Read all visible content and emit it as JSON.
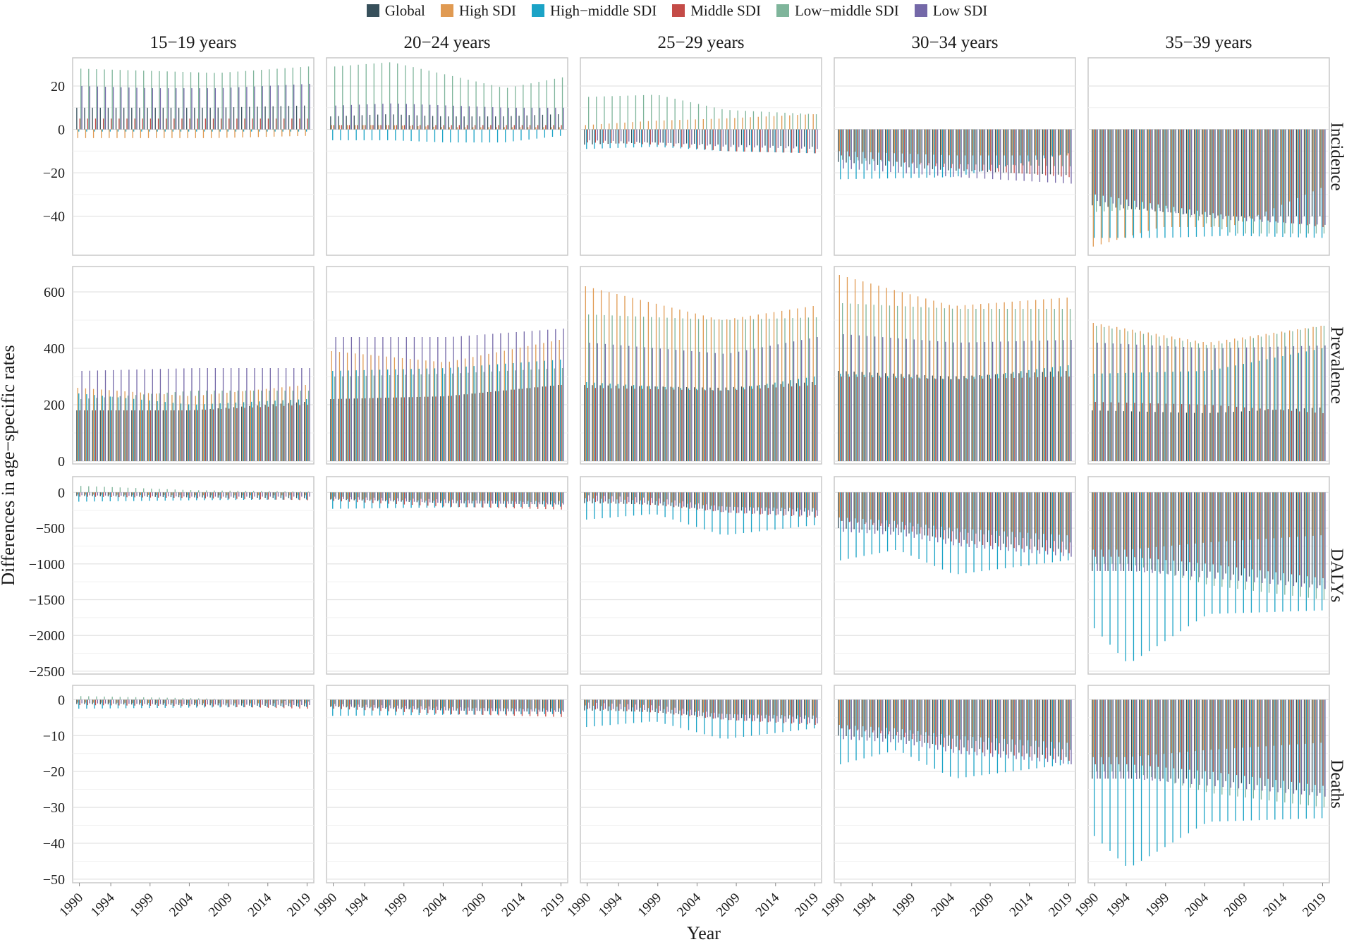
{
  "chart_data": {
    "type": "bar",
    "title": "",
    "xlabel": "Year",
    "ylabel": "Differences in age−specific rates",
    "legend": [
      {
        "name": "Global",
        "color": "#37505b"
      },
      {
        "name": "High SDI",
        "color": "#e09a52"
      },
      {
        "name": "High−middle SDI",
        "color": "#1ba3c6"
      },
      {
        "name": "Middle SDI",
        "color": "#c44b47"
      },
      {
        "name": "Low−middle SDI",
        "color": "#7fb59b"
      },
      {
        "name": "Low SDI",
        "color": "#7468a8"
      }
    ],
    "years": [
      1990,
      2019
    ],
    "x_ticks": [
      "1990",
      "1994",
      "1999",
      "2004",
      "2009",
      "2014",
      "2019"
    ],
    "age_groups": [
      "15−19 years",
      "20−24 years",
      "25−29 years",
      "30−34 years",
      "35−39 years"
    ],
    "rows": [
      {
        "measure": "Incidence",
        "ylim": [
          -58,
          33
        ],
        "ticks": [
          -40,
          -20,
          0,
          20
        ],
        "tick_labels": [
          "−40",
          "−20",
          "0",
          "20"
        ],
        "panels": [
          {
            "anchors": [
              [
                0,
                10,
                -4,
                -1,
                5,
                28,
                20
              ],
              [
                0.3,
                10,
                -4,
                -1,
                5,
                27,
                19
              ],
              [
                0.6,
                10,
                -4,
                -1,
                5,
                26,
                19
              ],
              [
                1,
                11,
                -3,
                -1,
                5,
                29,
                21
              ]
            ]
          },
          {
            "anchors": [
              [
                0,
                6,
                2,
                -5,
                2,
                29,
                11
              ],
              [
                0.25,
                7,
                2,
                -5,
                2,
                31,
                12
              ],
              [
                0.5,
                6,
                1,
                -6,
                2,
                25,
                11
              ],
              [
                0.75,
                6,
                1,
                -6,
                2,
                19,
                10
              ],
              [
                1,
                7,
                1,
                -3,
                2,
                24,
                10
              ]
            ]
          },
          {
            "anchors": [
              [
                0,
                -7,
                2,
                -9,
                -6,
                15,
                -5
              ],
              [
                0.3,
                -6,
                4,
                -8,
                -7,
                16,
                -6
              ],
              [
                0.6,
                -7,
                5,
                -10,
                -10,
                9,
                -8
              ],
              [
                1,
                -8,
                7,
                -11,
                -11,
                7,
                -9
              ]
            ]
          },
          {
            "anchors": [
              [
                0,
                -15,
                -10,
                -23,
                -12,
                -14,
                -18
              ],
              [
                0.5,
                -19,
                -12,
                -22,
                -18,
                -16,
                -22
              ],
              [
                1,
                -21,
                -12,
                -11,
                -22,
                -17,
                -25
              ]
            ]
          },
          {
            "anchors": [
              [
                0,
                -35,
                -54,
                -50,
                -30,
                -38,
                -33
              ],
              [
                0.3,
                -38,
                -45,
                -50,
                -35,
                -36,
                -38
              ],
              [
                0.6,
                -40,
                -45,
                -49,
                -40,
                -48,
                -42
              ],
              [
                1,
                -40,
                -27,
                -50,
                -45,
                -48,
                -44
              ]
            ]
          }
        ]
      },
      {
        "measure": "Prevalence",
        "ylim": [
          -10,
          690
        ],
        "ticks": [
          0,
          200,
          400,
          600
        ],
        "tick_labels": [
          "0",
          "200",
          "400",
          "600"
        ],
        "panels": [
          {
            "anchors": [
              [
                0,
                180,
                260,
                240,
                180,
                220,
                320
              ],
              [
                0.5,
                180,
                230,
                200,
                180,
                250,
                330
              ],
              [
                1,
                210,
                270,
                220,
                200,
                250,
                330
              ]
            ]
          },
          {
            "anchors": [
              [
                0,
                220,
                390,
                320,
                220,
                300,
                440
              ],
              [
                0.5,
                230,
                350,
                330,
                230,
                310,
                440
              ],
              [
                1,
                270,
                430,
                360,
                270,
                330,
                470
              ]
            ]
          },
          {
            "anchors": [
              [
                0,
                270,
                620,
                280,
                260,
                520,
                420
              ],
              [
                0.6,
                260,
                500,
                250,
                250,
                500,
                380
              ],
              [
                1,
                280,
                550,
                300,
                270,
                510,
                440
              ]
            ]
          },
          {
            "anchors": [
              [
                0,
                320,
                660,
                310,
                300,
                560,
                450
              ],
              [
                0.5,
                300,
                550,
                290,
                290,
                540,
                420
              ],
              [
                1,
                320,
                580,
                340,
                300,
                540,
                430
              ]
            ]
          },
          {
            "anchors": [
              [
                0,
                180,
                490,
                310,
                210,
                480,
                420
              ],
              [
                0.5,
                170,
                420,
                320,
                200,
                410,
                400
              ],
              [
                1,
                190,
                480,
                400,
                170,
                480,
                410
              ]
            ]
          }
        ]
      },
      {
        "measure": "DALYs",
        "ylim": [
          -2540,
          220
        ],
        "ticks": [
          -2500,
          -2000,
          -1500,
          -1000,
          -500,
          0
        ],
        "tick_labels": [
          "−2500",
          "−2000",
          "−1500",
          "−1000",
          "−500",
          "0"
        ],
        "panels": [
          {
            "anchors": [
              [
                0,
                -50,
                -30,
                -130,
                -60,
                90,
                -40
              ],
              [
                0.5,
                -70,
                -40,
                -110,
                -80,
                30,
                -60
              ],
              [
                1,
                -80,
                -40,
                -100,
                -110,
                10,
                -60
              ]
            ]
          },
          {
            "anchors": [
              [
                0,
                -100,
                -90,
                -230,
                -120,
                -60,
                -90
              ],
              [
                0.5,
                -150,
                -120,
                -210,
                -200,
                -100,
                -150
              ],
              [
                1,
                -170,
                -120,
                -200,
                -240,
                -150,
                -170
              ]
            ]
          },
          {
            "anchors": [
              [
                0,
                -150,
                -80,
                -380,
                -130,
                -40,
                -120
              ],
              [
                0.3,
                -170,
                -120,
                -300,
                -180,
                -80,
                -150
              ],
              [
                0.6,
                -250,
                -200,
                -600,
                -280,
                -200,
                -280
              ],
              [
                1,
                -270,
                -220,
                -460,
                -350,
                -250,
                -330
              ]
            ]
          },
          {
            "anchors": [
              [
                0,
                -500,
                -350,
                -950,
                -400,
                -400,
                -550
              ],
              [
                0.25,
                -550,
                -400,
                -800,
                -500,
                -450,
                -600
              ],
              [
                0.5,
                -650,
                -500,
                -1150,
                -700,
                -550,
                -750
              ],
              [
                1,
                -800,
                -600,
                -950,
                -850,
                -700,
                -900
              ]
            ]
          },
          {
            "anchors": [
              [
                0,
                -1100,
                -800,
                -1900,
                -900,
                -1000,
                -1100
              ],
              [
                0.15,
                -1100,
                -800,
                -2400,
                -900,
                -1000,
                -1100
              ],
              [
                0.5,
                -1100,
                -700,
                -1700,
                -1000,
                -1300,
                -1200
              ],
              [
                1,
                -1300,
                -600,
                -1650,
                -1200,
                -1500,
                -1350
              ]
            ]
          }
        ]
      },
      {
        "measure": "Deaths",
        "ylim": [
          -51,
          4
        ],
        "ticks": [
          -50,
          -40,
          -30,
          -20,
          -10,
          0
        ],
        "tick_labels": [
          "−50",
          "−40",
          "−30",
          "−20",
          "−10",
          "0"
        ],
        "panels": [
          {
            "anchors": [
              [
                0,
                -1.2,
                -0.8,
                -2.5,
                -1.5,
                1,
                -1
              ],
              [
                0.5,
                -1.5,
                -1,
                -2.2,
                -1.8,
                0.4,
                -1.3
              ],
              [
                1,
                -1.8,
                -1,
                -2,
                -2.5,
                -0.5,
                -1.5
              ]
            ]
          },
          {
            "anchors": [
              [
                0,
                -2,
                -1.8,
                -4.5,
                -2.5,
                -1.2,
                -1.8
              ],
              [
                0.5,
                -3,
                -2.4,
                -4.2,
                -4,
                -2,
                -3
              ],
              [
                1,
                -3.4,
                -2.4,
                -4,
                -4.8,
                -3,
                -3.4
              ]
            ]
          },
          {
            "anchors": [
              [
                0,
                -3,
                -1.6,
                -7.6,
                -2.6,
                -0.8,
                -2.4
              ],
              [
                0.3,
                -3.4,
                -2.4,
                -6,
                -3.6,
                -1.6,
                -3
              ],
              [
                0.6,
                -5,
                -4,
                -11,
                -5.6,
                -4,
                -5.6
              ],
              [
                1,
                -5.4,
                -4.4,
                -8,
                -7,
                -5,
                -6.6
              ]
            ]
          },
          {
            "anchors": [
              [
                0,
                -10,
                -7,
                -18,
                -8,
                -8,
                -11
              ],
              [
                0.25,
                -11,
                -8,
                -14,
                -10,
                -9,
                -12
              ],
              [
                0.5,
                -13,
                -10,
                -22,
                -14,
                -11,
                -15
              ],
              [
                1,
                -16,
                -12,
                -18,
                -17,
                -14,
                -18
              ]
            ]
          },
          {
            "anchors": [
              [
                0,
                -22,
                -16,
                -38,
                -18,
                -20,
                -22
              ],
              [
                0.15,
                -22,
                -16,
                -47,
                -18,
                -20,
                -22
              ],
              [
                0.5,
                -22,
                -14,
                -34,
                -20,
                -26,
                -24
              ],
              [
                1,
                -26,
                -12,
                -33,
                -24,
                -30,
                -27
              ]
            ]
          }
        ]
      }
    ]
  }
}
